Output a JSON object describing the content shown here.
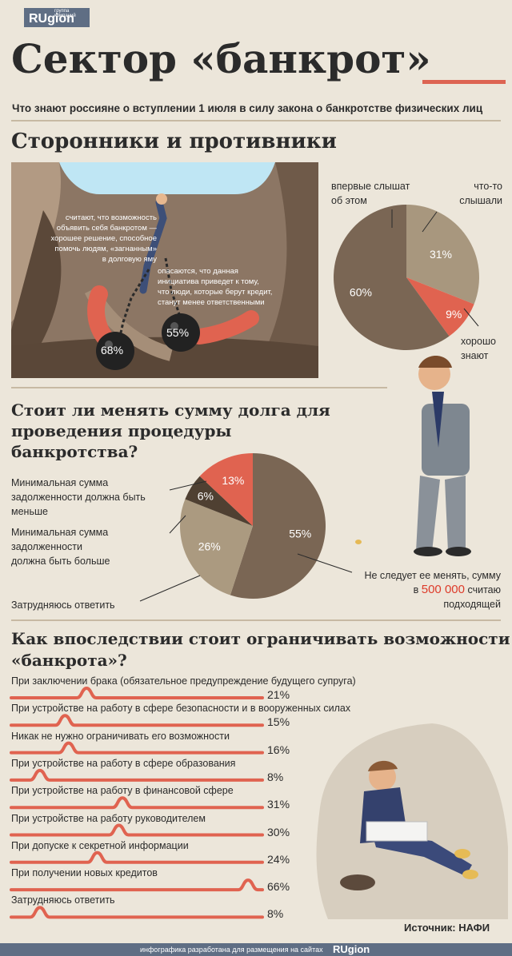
{
  "logo": {
    "small": "группа компаний",
    "brand": "RUgion"
  },
  "title": "Сектор «банкрот»",
  "subtitle": "Что знают россияне о вступлении 1 июля в силу закона о банкротстве физических лиц",
  "sections": {
    "s1": "Сторонники и противники",
    "s2_line1": "Стоит ли менять сумму долга для",
    "s2_line2": "проведения процедуры",
    "s2_line3": "банкротства?",
    "s3_line1": "Как впоследствии стоит ограничивать возможности",
    "s3_line2": "«банкрота»?"
  },
  "scene": {
    "left_text": [
      "считают, что возможность",
      "объявить себя банкротом —",
      "хорошее решение, способное",
      "помочь людям, «загнанным»",
      "в долговую яму"
    ],
    "right_text": [
      "опасаются, что данная",
      "инициатива приведет к тому,",
      "что люди, которые берут кредит,",
      "станут менее ответственными"
    ],
    "ball_left": "68%",
    "ball_right": "55%"
  },
  "pie1_labels": {
    "first": [
      "впервые слышат",
      "об этом"
    ],
    "heard": [
      "что-то",
      "слышали"
    ],
    "know": [
      "хорошо",
      "знают"
    ]
  },
  "pie2_labels": {
    "less": [
      "Минимальная сумма",
      "задолженности должна быть",
      "меньше"
    ],
    "more": [
      "Минимальная сумма",
      "задолженности",
      "должна быть больше"
    ],
    "hard": "Затрудняюсь ответить",
    "keep1": "Не следует ее менять, сумму",
    "keep2a": "в",
    "keep2b": "500 000",
    "keep2c": "считаю",
    "keep3": "подходящей"
  },
  "chart_data": [
    {
      "type": "pie",
      "slices": [
        {
          "label": "впервые слышат об этом",
          "value": 60,
          "text": "60%",
          "color": "#7a6654"
        },
        {
          "label": "что-то слышали",
          "value": 31,
          "text": "31%",
          "color": "#a8977e"
        },
        {
          "label": "хорошо знают",
          "value": 9,
          "text": "9%",
          "color": "#e06350"
        }
      ]
    },
    {
      "type": "pie",
      "slices": [
        {
          "label": "Не следует ее менять",
          "value": 55,
          "text": "55%",
          "color": "#7a6654"
        },
        {
          "label": "Затрудняюсь ответить",
          "value": 26,
          "text": "26%",
          "color": "#ab9a80"
        },
        {
          "label": "Минимальная сумма задолженности должна быть больше",
          "value": 6,
          "text": "6%",
          "color": "#4f4032"
        },
        {
          "label": "Минимальная сумма задолженности должна быть меньше",
          "value": 13,
          "text": "13%",
          "color": "#e06350"
        }
      ]
    },
    {
      "type": "bar",
      "categories": [
        "При заключении брака (обязательное предупреждение будущего супруга)",
        "При устройстве на работу в сфере безопасности и в вооруженных силах",
        "Никак не нужно ограничивать его возможности",
        "При устройстве на работу в сфере образования",
        "При устройстве на работу в финансовой сфере",
        "При устройстве на работу руководителем",
        "При допуске к секретной информации",
        "При получении новых кредитов",
        "Затрудняюсь ответить"
      ],
      "values": [
        21,
        15,
        16,
        8,
        31,
        30,
        24,
        66,
        8
      ],
      "labels": [
        "21%",
        "15%",
        "16%",
        "8%",
        "31%",
        "30%",
        "24%",
        "66%",
        "8%"
      ],
      "color": "#e06350"
    }
  ],
  "source": "Источник: НАФИ",
  "footer": {
    "text": "инфографика разработана для размещения на сайтах",
    "brand": "RUgion"
  }
}
